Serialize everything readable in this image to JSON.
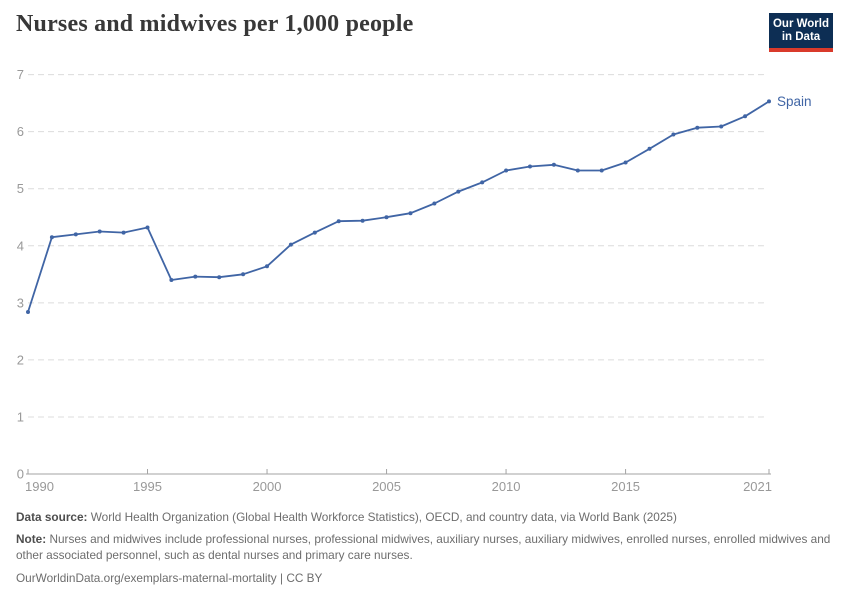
{
  "header": {
    "title": "Nurses and midwives per 1,000 people",
    "logo": {
      "line1": "Our World",
      "line2": "in Data",
      "bg_color": "#0d2e54",
      "bar_color": "#d93a2b",
      "text_color": "#ffffff"
    }
  },
  "chart_data": {
    "type": "line",
    "title": "Nurses and midwives per 1,000 people",
    "xlabel": "",
    "ylabel": "",
    "xlim": [
      1990,
      2021
    ],
    "ylim": [
      0,
      7
    ],
    "xticks": [
      1990,
      1995,
      2000,
      2005,
      2010,
      2015,
      2021
    ],
    "yticks": [
      0,
      1,
      2,
      3,
      4,
      5,
      6,
      7
    ],
    "grid": "horizontal-dashed",
    "legend_position": "line-end-label",
    "x": [
      1990,
      1991,
      1992,
      1993,
      1994,
      1995,
      1996,
      1997,
      1998,
      1999,
      2000,
      2001,
      2002,
      2003,
      2004,
      2005,
      2006,
      2007,
      2008,
      2009,
      2010,
      2011,
      2012,
      2013,
      2014,
      2015,
      2016,
      2017,
      2018,
      2019,
      2020,
      2021
    ],
    "series": [
      {
        "name": "Spain",
        "color": "#4065a5",
        "values": [
          2.84,
          4.15,
          4.2,
          4.25,
          4.23,
          4.32,
          3.4,
          3.46,
          3.45,
          3.5,
          3.64,
          4.02,
          4.23,
          4.43,
          4.44,
          4.5,
          4.57,
          4.74,
          4.95,
          5.11,
          5.32,
          5.39,
          5.42,
          5.32,
          5.32,
          5.46,
          5.7,
          5.95,
          6.07,
          6.09,
          6.27,
          6.53
        ]
      }
    ],
    "colors": {
      "grid": "#dcdcdc",
      "axis": "#a3a3a3",
      "tick_label": "#999999"
    }
  },
  "footer": {
    "data_source_label": "Data source:",
    "data_source_text": "World Health Organization (Global Health Workforce Statistics), OECD, and country data, via World Bank (2025)",
    "note_label": "Note:",
    "note_text": "Nurses and midwives include professional nurses, professional midwives, auxiliary nurses, auxiliary midwives, enrolled nurses, enrolled midwives and other associated personnel, such as dental nurses and primary care nurses.",
    "attribution": "OurWorldinData.org/exemplars-maternal-mortality | CC BY"
  }
}
